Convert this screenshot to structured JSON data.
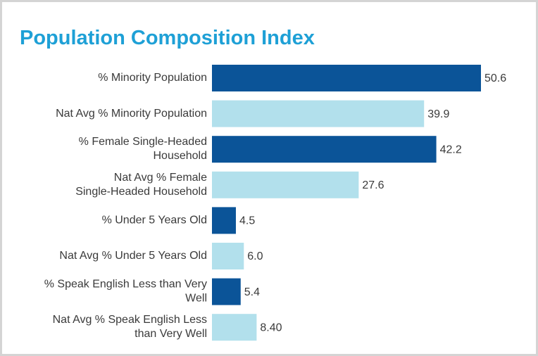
{
  "chart_data": {
    "type": "bar",
    "orientation": "horizontal",
    "title": "Population Composition Index",
    "categories": [
      "% Minority Population",
      "Nat Avg % Minority Population",
      "% Female Single-Headed\nHousehold",
      "Nat Avg % Female\nSingle-Headed Household",
      "% Under 5 Years Old",
      "Nat Avg % Under 5 Years Old",
      "% Speak English Less than Very\nWell",
      "Nat Avg % Speak English Less\nthan Very Well"
    ],
    "values": [
      50.6,
      39.9,
      42.2,
      27.6,
      4.5,
      6.0,
      5.4,
      8.4
    ],
    "value_labels": [
      "50.6",
      "39.9",
      "42.2",
      "27.6",
      "4.5",
      "6.0",
      "5.4",
      "8.40"
    ],
    "colors": [
      "#0b5498",
      "#b2e0ec",
      "#0b5498",
      "#b2e0ec",
      "#0b5498",
      "#b2e0ec",
      "#0b5498",
      "#b2e0ec"
    ]
  }
}
